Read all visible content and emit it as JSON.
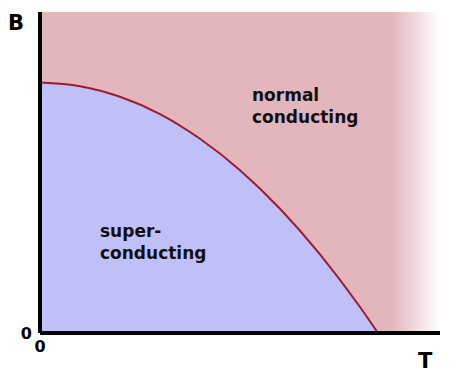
{
  "chart_data": {
    "type": "area",
    "x_label": "T",
    "y_label": "B",
    "x": [
      0,
      10,
      20,
      30,
      40,
      50,
      60,
      70,
      80,
      84.5
    ],
    "values": [
      78,
      76.9,
      73.6,
      68.2,
      60.5,
      50.7,
      38.7,
      24.5,
      8.1,
      0
    ],
    "color": "#9e1b2c",
    "xlim": [
      0,
      100
    ],
    "ylim": [
      0,
      100
    ],
    "xticks": [
      0
    ],
    "yticks": [
      0
    ],
    "grid": false,
    "regions": [
      {
        "label": [
          "super-",
          "conducting"
        ],
        "color": "#c0c0f8"
      },
      {
        "label": [
          "normal",
          "conducting"
        ],
        "color": "#e3b6be"
      }
    ]
  }
}
